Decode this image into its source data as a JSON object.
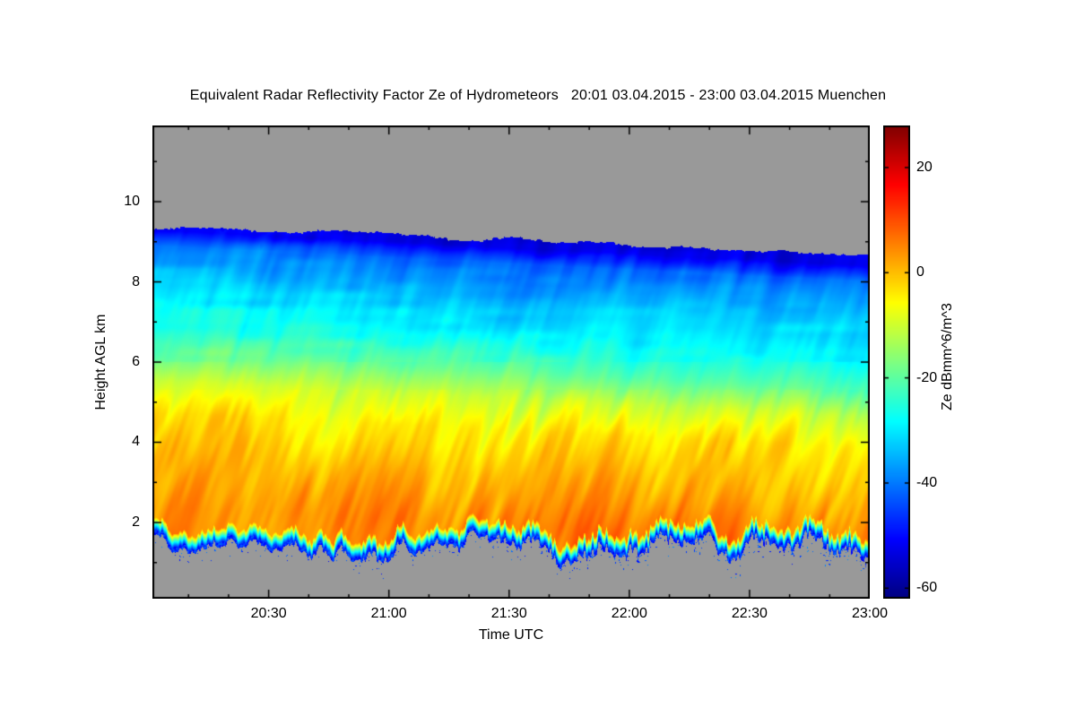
{
  "figure": {
    "background": "#ffffff",
    "no_data_color": "#999999"
  },
  "chart_data": {
    "type": "heatmap",
    "title": "Equivalent Radar Reflectivity Factor Ze of Hydrometeors   20:01 03.04.2015 - 23:00 03.04.2015 Muenchen",
    "xlabel": "Time UTC",
    "ylabel": "Height AGL km",
    "colorbar_label": "Ze dBmm^6/m^3",
    "time_start": "20:01",
    "time_end": "23:00",
    "date": "03.04.2015",
    "station": "Muenchen",
    "time_span_minutes": 179,
    "x_ticks": [
      {
        "label": "20:30",
        "minutes_from_start": 29
      },
      {
        "label": "21:00",
        "minutes_from_start": 59
      },
      {
        "label": "21:30",
        "minutes_from_start": 89
      },
      {
        "label": "22:00",
        "minutes_from_start": 119
      },
      {
        "label": "22:30",
        "minutes_from_start": 149
      },
      {
        "label": "23:00",
        "minutes_from_start": 179
      }
    ],
    "x_minor_tick_minutes": 10,
    "y_ticks_km": [
      2,
      4,
      6,
      8,
      10
    ],
    "y_minor_tick_km": 1,
    "y_range_km": [
      0.1,
      11.9
    ],
    "colorbar_ticks_dbz": [
      20,
      0,
      -20,
      -40,
      -60
    ],
    "colorbar_range_dbz": [
      -62,
      28
    ],
    "colormap": "jet",
    "cloud_top_km": {
      "start": 9.35,
      "end": 8.7
    },
    "cloud_base_km": {
      "mean": 1.35,
      "jitter": 0.5
    },
    "descent_km_total": 0.9,
    "streak_amplitude_db": 4,
    "reflectivity_profile_km_dbz": [
      [
        9.3,
        -52
      ],
      [
        8.9,
        -41
      ],
      [
        7.9,
        -33
      ],
      [
        6.9,
        -27
      ],
      [
        6.2,
        -20
      ],
      [
        5.55,
        -11
      ],
      [
        4.75,
        -4
      ],
      [
        3.6,
        1
      ],
      [
        2.4,
        5
      ],
      [
        0.8,
        7
      ]
    ]
  }
}
